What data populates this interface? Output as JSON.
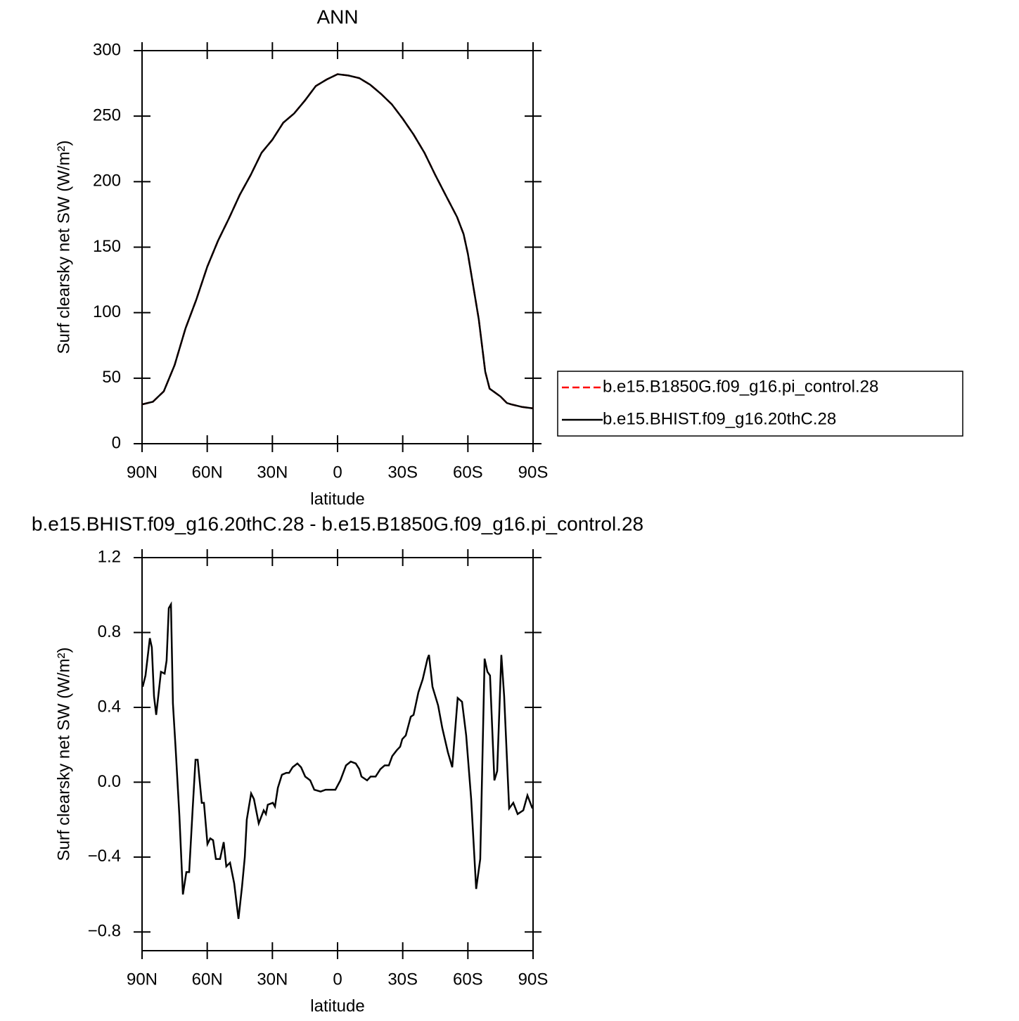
{
  "chart_data": [
    {
      "type": "line",
      "title": "ANN",
      "xlabel": "latitude",
      "ylabel": "Surf clearsky net SW (W/m²)",
      "x": [
        90,
        85,
        80,
        75,
        70,
        65,
        60,
        55,
        50,
        45,
        40,
        35,
        30,
        25,
        20,
        15,
        10,
        5,
        0,
        -5,
        -10,
        -15,
        -20,
        -25,
        -30,
        -35,
        -40,
        -45,
        -50,
        -55,
        -58,
        -60,
        -65,
        -68,
        -70,
        -75,
        -78,
        -80,
        -85,
        -90
      ],
      "series": [
        {
          "name": "b.e15.B1850G.f09_g16.pi_control.28",
          "color": "#ff0000",
          "line_style": "dashed",
          "values": [
            30,
            32,
            40,
            60,
            88,
            110,
            135,
            155,
            172,
            190,
            205,
            222,
            232,
            245,
            252,
            262,
            273,
            278,
            282,
            281,
            279,
            274,
            267,
            259,
            248,
            236,
            222,
            205,
            189,
            173,
            160,
            145,
            95,
            55,
            42,
            36,
            31,
            30,
            28,
            27
          ]
        },
        {
          "name": "b.e15.BHIST.f09_g16.20thC.28",
          "color": "#000000",
          "line_style": "solid",
          "values": [
            30,
            32,
            40,
            60,
            88,
            110,
            135,
            155,
            172,
            190,
            205,
            222,
            232,
            245,
            252,
            262,
            273,
            278,
            282,
            281,
            279,
            274,
            267,
            259,
            248,
            236,
            222,
            205,
            189,
            173,
            160,
            145,
            95,
            55,
            42,
            36,
            31,
            30,
            28,
            27
          ]
        }
      ],
      "xlim": [
        90,
        -90
      ],
      "xticks": [
        {
          "value": 90,
          "label": "90N"
        },
        {
          "value": 60,
          "label": "60N"
        },
        {
          "value": 30,
          "label": "30N"
        },
        0,
        {
          "value": -30,
          "label": "30S"
        },
        {
          "value": -60,
          "label": "60S"
        },
        {
          "value": -90,
          "label": "90S"
        }
      ],
      "ylim": [
        0,
        300
      ],
      "yticks": [
        0,
        50,
        100,
        150,
        200,
        250,
        300
      ],
      "legend": "right"
    },
    {
      "type": "line",
      "title": "b.e15.BHIST.f09_g16.20thC.28 - b.e15.B1850G.f09_g16.pi_control.28",
      "xlabel": "latitude",
      "ylabel": "Surf clearsky net SW (W/m²)",
      "x": [
        89.7,
        88.4,
        86.4,
        85.5,
        84.5,
        83.5,
        81.3,
        79.6,
        78.7,
        77.7,
        76.7,
        75.8,
        74.5,
        72.8,
        71.2,
        69.6,
        68.3,
        66.7,
        65.4,
        64.4,
        62.5,
        61.5,
        59.9,
        58.6,
        57.3,
        56.0,
        54.1,
        52.4,
        51.2,
        49.5,
        47.6,
        45.6,
        44.0,
        42.7,
        41.8,
        39.8,
        38.5,
        36.3,
        34.0,
        33.0,
        32.1,
        29.8,
        28.8,
        27.5,
        25.6,
        23.6,
        22.3,
        20.7,
        18.5,
        16.8,
        14.9,
        12.6,
        10.7,
        7.8,
        5.5,
        3.3,
        1.0,
        -1.3,
        -3.9,
        -6.1,
        -8.4,
        -10.0,
        -11.0,
        -13.6,
        -15.2,
        -17.5,
        -19.7,
        -21.7,
        -23.6,
        -25.2,
        -27.2,
        -28.8,
        -29.8,
        -31.4,
        -33.7,
        -35.0,
        -37.2,
        -39.2,
        -41.4,
        -42.1,
        -43.7,
        -46.3,
        -48.2,
        -50.8,
        -52.8,
        -55.3,
        -57.3,
        -59.2,
        -61.5,
        -63.8,
        -65.7,
        -67.7,
        -69.0,
        -70.2,
        -72.2,
        -73.5,
        -75.4,
        -76.7,
        -79.0,
        -80.9,
        -82.9,
        -85.5,
        -87.4,
        -89.7
      ],
      "series": [
        {
          "color": "#000000",
          "line_style": "solid",
          "values": [
            0.51,
            0.57,
            0.77,
            0.72,
            0.46,
            0.36,
            0.59,
            0.58,
            0.65,
            0.93,
            0.95,
            0.42,
            0.17,
            -0.18,
            -0.6,
            -0.48,
            -0.48,
            -0.14,
            0.12,
            0.12,
            -0.11,
            -0.11,
            -0.33,
            -0.3,
            -0.31,
            -0.41,
            -0.41,
            -0.32,
            -0.45,
            -0.43,
            -0.54,
            -0.73,
            -0.56,
            -0.4,
            -0.2,
            -0.06,
            -0.09,
            -0.22,
            -0.15,
            -0.17,
            -0.12,
            -0.11,
            -0.13,
            -0.03,
            0.04,
            0.05,
            0.05,
            0.08,
            0.1,
            0.08,
            0.03,
            0.01,
            -0.04,
            -0.05,
            -0.04,
            -0.04,
            -0.04,
            0.01,
            0.09,
            0.11,
            0.1,
            0.07,
            0.03,
            0.01,
            0.03,
            0.03,
            0.07,
            0.09,
            0.09,
            0.14,
            0.17,
            0.19,
            0.23,
            0.25,
            0.35,
            0.36,
            0.48,
            0.55,
            0.66,
            0.68,
            0.51,
            0.41,
            0.29,
            0.16,
            0.08,
            0.45,
            0.43,
            0.25,
            -0.09,
            -0.57,
            -0.41,
            0.66,
            0.59,
            0.57,
            0.01,
            0.06,
            0.68,
            0.46,
            -0.14,
            -0.11,
            -0.17,
            -0.15,
            -0.07,
            -0.14
          ]
        }
      ],
      "xlim": [
        90,
        -90
      ],
      "xticks": [
        {
          "value": 90,
          "label": "90N"
        },
        {
          "value": 60,
          "label": "60N"
        },
        {
          "value": 30,
          "label": "30N"
        },
        0,
        {
          "value": -30,
          "label": "30S"
        },
        {
          "value": -60,
          "label": "60S"
        },
        {
          "value": -90,
          "label": "90S"
        }
      ],
      "ylim": [
        -0.9,
        1.2
      ],
      "yticks": [
        {
          "value": -0.8,
          "label": "−0.8"
        },
        {
          "value": -0.4,
          "label": "−0.4"
        },
        {
          "value": 0,
          "label": "0.0"
        },
        0.4,
        0.8,
        1.2
      ]
    }
  ]
}
